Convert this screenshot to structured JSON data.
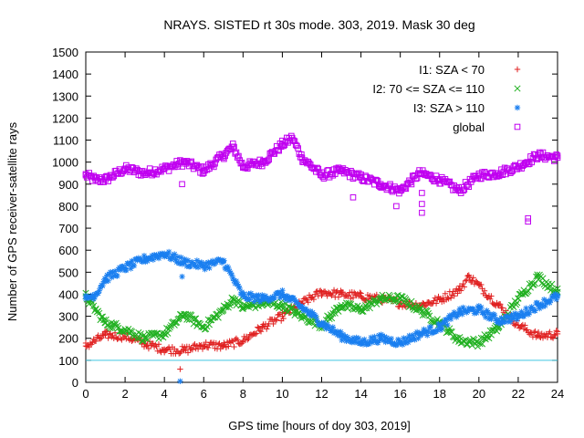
{
  "chart_data": {
    "type": "scatter",
    "title": "NRAYS. SISTED rt 30s mode. 303, 2019. Mask 30 deg",
    "xlabel": "GPS time [hours of doy 303, 2019]",
    "ylabel": "Number of GPS receiver-satellite rays",
    "xlim": [
      0,
      24
    ],
    "ylim": [
      0,
      1500
    ],
    "x_ticks": [
      "0",
      "2",
      "4",
      "6",
      "8",
      "10",
      "12",
      "14",
      "16",
      "18",
      "20",
      "22",
      "24"
    ],
    "y_ticks": [
      "0",
      "100",
      "200",
      "300",
      "400",
      "500",
      "600",
      "700",
      "800",
      "900",
      "1000",
      "1100",
      "1200",
      "1300",
      "1400",
      "1500"
    ],
    "reference_line": {
      "y": 100,
      "color": "#40c8e0"
    },
    "legend_position": "top-right",
    "series": [
      {
        "name": "I1: SZA < 70",
        "marker": "+",
        "color": "#e02020",
        "x": [
          0,
          1,
          2,
          3,
          4,
          5,
          6,
          7,
          8,
          9,
          10,
          11,
          12,
          13,
          14,
          15,
          16,
          17,
          18,
          19,
          19.5,
          20,
          21,
          22,
          23,
          24
        ],
        "y": [
          165,
          215,
          210,
          175,
          150,
          145,
          170,
          165,
          190,
          250,
          300,
          360,
          410,
          400,
          390,
          380,
          360,
          350,
          375,
          420,
          480,
          440,
          350,
          260,
          210,
          220
        ]
      },
      {
        "name": "I2: 70 <= SZA <= 110",
        "marker": "x",
        "color": "#20b020",
        "x": [
          0,
          0.5,
          1,
          2,
          3,
          4,
          5,
          6,
          7,
          7.5,
          8,
          9,
          10,
          11,
          12,
          13,
          14,
          15,
          16,
          17,
          18,
          19,
          20,
          21,
          22,
          23,
          24
        ],
        "y": [
          390,
          330,
          270,
          240,
          200,
          220,
          310,
          250,
          330,
          380,
          340,
          360,
          350,
          300,
          260,
          350,
          330,
          380,
          380,
          330,
          270,
          190,
          180,
          250,
          380,
          480,
          410
        ]
      },
      {
        "name": "I3: SZA > 110",
        "marker": "*",
        "color": "#1a7ff0",
        "x": [
          0,
          0.5,
          1,
          2,
          3,
          4,
          5,
          6,
          7,
          8,
          9,
          10,
          11,
          12,
          13,
          14,
          15,
          16,
          17,
          18,
          19,
          20,
          21,
          22,
          23,
          24
        ],
        "y": [
          380,
          400,
          470,
          520,
          560,
          585,
          545,
          530,
          550,
          390,
          380,
          400,
          340,
          270,
          210,
          180,
          200,
          180,
          220,
          250,
          320,
          330,
          280,
          300,
          350,
          390
        ]
      },
      {
        "name": "global",
        "marker": "square",
        "color": "#c000f0",
        "x": [
          0,
          0.5,
          1,
          2,
          3,
          4,
          5,
          6,
          7,
          7.5,
          8,
          9,
          10,
          10.5,
          11,
          12,
          13,
          14,
          15,
          16,
          17,
          18,
          19,
          20,
          21,
          22,
          23,
          24
        ],
        "y": [
          940,
          920,
          920,
          970,
          950,
          970,
          1000,
          960,
          1030,
          1070,
          980,
          1000,
          1080,
          1110,
          1020,
          940,
          960,
          930,
          900,
          870,
          950,
          920,
          870,
          940,
          950,
          980,
          1030,
          1020
        ]
      }
    ],
    "outliers": [
      {
        "series": "I1: SZA < 70",
        "x": 4.8,
        "y": 60
      },
      {
        "series": "I3: SZA > 110",
        "x": 4.8,
        "y": 5
      },
      {
        "series": "I3: SZA > 110",
        "x": 4.9,
        "y": 480
      },
      {
        "series": "global",
        "x": 22.5,
        "y": 730
      },
      {
        "series": "global",
        "x": 22.5,
        "y": 745
      },
      {
        "series": "global",
        "x": 17.1,
        "y": 770
      },
      {
        "series": "global",
        "x": 17.1,
        "y": 810
      },
      {
        "series": "global",
        "x": 17.1,
        "y": 860
      },
      {
        "series": "global",
        "x": 15.8,
        "y": 800
      },
      {
        "series": "global",
        "x": 13.6,
        "y": 840
      },
      {
        "series": "global",
        "x": 4.9,
        "y": 900
      }
    ]
  }
}
